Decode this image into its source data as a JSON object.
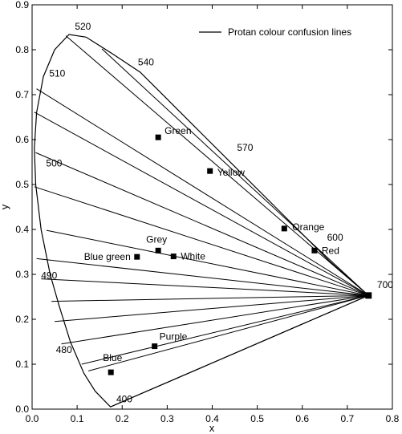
{
  "chart_data": {
    "type": "line",
    "xlabel": "x",
    "ylabel": "y",
    "xlim": [
      0.0,
      0.8
    ],
    "ylim": [
      0.0,
      0.9
    ],
    "xticks": [
      "0.0",
      "0.1",
      "0.2",
      "0.3",
      "0.4",
      "0.5",
      "0.6",
      "0.7",
      "0.8"
    ],
    "yticks": [
      "0.0",
      "0.1",
      "0.2",
      "0.3",
      "0.4",
      "0.5",
      "0.6",
      "0.7",
      "0.8",
      "0.9"
    ],
    "grid": false,
    "legend": {
      "placement": "top-right",
      "entries": [
        "Protan colour confusion lines"
      ]
    },
    "copunctal_point": [
      0.747,
      0.253
    ],
    "spectrum_locus": [
      [
        0.174,
        0.005
      ],
      [
        0.14,
        0.04
      ],
      [
        0.115,
        0.08
      ],
      [
        0.085,
        0.15
      ],
      [
        0.06,
        0.23
      ],
      [
        0.04,
        0.3
      ],
      [
        0.02,
        0.4
      ],
      [
        0.008,
        0.5
      ],
      [
        0.005,
        0.58
      ],
      [
        0.01,
        0.66
      ],
      [
        0.025,
        0.74
      ],
      [
        0.05,
        0.8
      ],
      [
        0.082,
        0.834
      ],
      [
        0.12,
        0.828
      ],
      [
        0.18,
        0.79
      ],
      [
        0.24,
        0.75
      ],
      [
        0.3,
        0.69
      ],
      [
        0.36,
        0.63
      ],
      [
        0.42,
        0.57
      ],
      [
        0.48,
        0.51
      ],
      [
        0.54,
        0.45
      ],
      [
        0.6,
        0.39
      ],
      [
        0.66,
        0.33
      ],
      [
        0.747,
        0.253
      ]
    ],
    "series": [
      {
        "name": "Protan colour confusion lines",
        "from": [
          0.747,
          0.253
        ],
        "line_ends": [
          [
            0.174,
            0.005
          ],
          [
            0.125,
            0.085
          ],
          [
            0.11,
            0.1
          ],
          [
            0.065,
            0.145
          ],
          [
            0.05,
            0.195
          ],
          [
            0.043,
            0.24
          ],
          [
            0.02,
            0.29
          ],
          [
            0.01,
            0.335
          ],
          [
            0.032,
            0.398
          ],
          [
            0.005,
            0.495
          ],
          [
            0.008,
            0.571
          ],
          [
            0.005,
            0.661
          ],
          [
            0.01,
            0.713
          ],
          [
            0.075,
            0.831
          ],
          [
            0.155,
            0.802
          ]
        ]
      }
    ],
    "wavelength_labels": [
      {
        "text": "520",
        "x": 0.095,
        "y": 0.845
      },
      {
        "text": "540",
        "x": 0.235,
        "y": 0.765
      },
      {
        "text": "510",
        "x": 0.038,
        "y": 0.74
      },
      {
        "text": "570",
        "x": 0.455,
        "y": 0.575
      },
      {
        "text": "500",
        "x": 0.031,
        "y": 0.54
      },
      {
        "text": "600",
        "x": 0.655,
        "y": 0.375
      },
      {
        "text": "700",
        "x": 0.766,
        "y": 0.27
      },
      {
        "text": "490",
        "x": 0.02,
        "y": 0.29
      },
      {
        "text": "480",
        "x": 0.053,
        "y": 0.125
      },
      {
        "text": "400",
        "x": 0.187,
        "y": 0.015
      }
    ],
    "points": [
      {
        "label": "Green",
        "x": 0.28,
        "y": 0.605
      },
      {
        "label": "Yellow",
        "x": 0.395,
        "y": 0.53
      },
      {
        "label": "Orange",
        "x": 0.56,
        "y": 0.402
      },
      {
        "label": "Red",
        "x": 0.627,
        "y": 0.353
      },
      {
        "label": "Grey",
        "x": 0.28,
        "y": 0.353
      },
      {
        "label": "White",
        "x": 0.314,
        "y": 0.34
      },
      {
        "label": "Blue green",
        "x": 0.233,
        "y": 0.339
      },
      {
        "label": "Purple",
        "x": 0.272,
        "y": 0.14
      },
      {
        "label": "Blue",
        "x": 0.175,
        "y": 0.082
      }
    ]
  }
}
